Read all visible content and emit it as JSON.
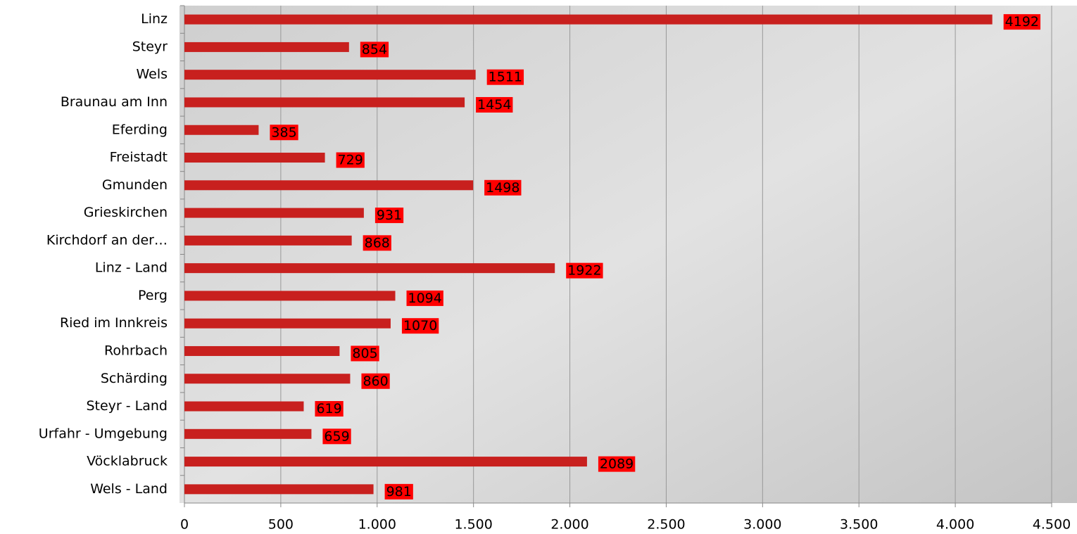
{
  "chart_data": {
    "type": "bar",
    "orientation": "horizontal",
    "categories": [
      "Linz",
      "Steyr",
      "Wels",
      "Braunau am Inn",
      "Eferding",
      "Freistadt",
      "Gmunden",
      "Grieskirchen",
      "Kirchdorf an der…",
      "Linz - Land",
      "Perg",
      "Ried im Innkreis",
      "Rohrbach",
      "Schärding",
      "Steyr - Land",
      "Urfahr - Umgebung",
      "Vöcklabruck",
      "Wels - Land"
    ],
    "values": [
      4192,
      854,
      1511,
      1454,
      385,
      729,
      1498,
      931,
      868,
      1922,
      1094,
      1070,
      805,
      860,
      619,
      659,
      2089,
      981
    ],
    "color": "#c8201e",
    "label_color": "#ff0000",
    "xlim": [
      0,
      4500
    ],
    "xticks": [
      0,
      500,
      {
        "value": 1000,
        "label": "1.000"
      },
      {
        "value": 1500,
        "label": "1.500"
      },
      {
        "value": 2000,
        "label": "2.000"
      },
      {
        "value": 2500,
        "label": "2.500"
      },
      {
        "value": 3000,
        "label": "3.000"
      },
      {
        "value": 3500,
        "label": "3.500"
      },
      {
        "value": 4000,
        "label": "4.000"
      },
      {
        "value": 4500,
        "label": "4.500"
      }
    ],
    "grid": true
  }
}
